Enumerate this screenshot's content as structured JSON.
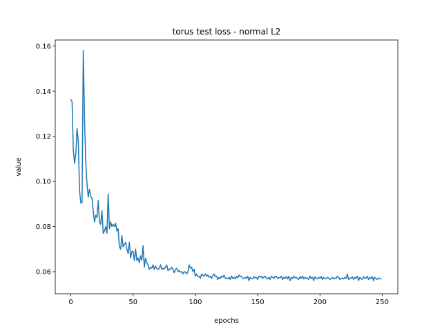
{
  "chart_data": {
    "type": "line",
    "title": "torus test loss - normal L2",
    "xlabel": "epochs",
    "ylabel": "value",
    "xlim": [
      -12.5,
      262.5
    ],
    "ylim": [
      0.0502,
      0.1627
    ],
    "xticks": [
      0,
      50,
      100,
      150,
      200,
      250
    ],
    "xtick_labels": [
      "0",
      "50",
      "100",
      "150",
      "200",
      "250"
    ],
    "yticks": [
      0.06,
      0.08,
      0.1,
      0.12,
      0.14,
      0.16
    ],
    "ytick_labels": [
      "0.06",
      "0.08",
      "0.10",
      "0.12",
      "0.14",
      "0.16"
    ],
    "grid": false,
    "line_color": "#1f77b4",
    "series": [
      {
        "x": [
          0,
          1,
          2,
          3,
          4,
          5,
          6,
          7,
          8,
          9,
          10,
          11,
          12,
          13,
          14,
          15,
          16,
          17,
          18,
          19,
          20,
          21,
          22,
          23,
          24,
          25,
          26,
          27,
          28,
          29,
          30,
          31,
          32,
          33,
          34,
          35,
          36,
          37,
          38,
          39,
          40,
          41,
          42,
          43,
          44,
          45,
          46,
          47,
          48,
          49,
          50,
          51,
          52,
          53,
          54,
          55,
          56,
          57,
          58,
          59,
          60,
          61,
          62,
          63,
          64,
          65,
          66,
          67,
          68,
          69,
          70,
          71,
          72,
          73,
          74,
          75,
          76,
          77,
          78,
          79,
          80,
          81,
          82,
          83,
          84,
          85,
          86,
          87,
          88,
          89,
          90,
          91,
          92,
          93,
          94,
          95,
          96,
          97,
          98,
          99,
          100,
          101,
          102,
          103,
          104,
          105,
          106,
          107,
          108,
          109,
          110,
          111,
          112,
          113,
          114,
          115,
          116,
          117,
          118,
          119,
          120,
          121,
          122,
          123,
          124,
          125,
          126,
          127,
          128,
          129,
          130,
          131,
          132,
          133,
          134,
          135,
          136,
          137,
          138,
          139,
          140,
          141,
          142,
          143,
          144,
          145,
          146,
          147,
          148,
          149,
          150,
          151,
          152,
          153,
          154,
          155,
          156,
          157,
          158,
          159,
          160,
          161,
          162,
          163,
          164,
          165,
          166,
          167,
          168,
          169,
          170,
          171,
          172,
          173,
          174,
          175,
          176,
          177,
          178,
          179,
          180,
          181,
          182,
          183,
          184,
          185,
          186,
          187,
          188,
          189,
          190,
          191,
          192,
          193,
          194,
          195,
          196,
          197,
          198,
          199,
          200,
          201,
          202,
          203,
          204,
          205,
          206,
          207,
          208,
          209,
          210,
          211,
          212,
          213,
          214,
          215,
          216,
          217,
          218,
          219,
          220,
          221,
          222,
          223,
          224,
          225,
          226,
          227,
          228,
          229,
          230,
          231,
          232,
          233,
          234,
          235,
          236,
          237,
          238,
          239,
          240,
          241,
          242,
          243,
          244,
          245,
          246,
          247,
          248,
          249
        ],
        "values": [
          0.1362,
          0.1355,
          0.114,
          0.108,
          0.112,
          0.1235,
          0.118,
          0.096,
          0.0905,
          0.0905,
          0.158,
          0.128,
          0.108,
          0.099,
          0.093,
          0.0965,
          0.0935,
          0.0925,
          0.087,
          0.082,
          0.085,
          0.084,
          0.0915,
          0.082,
          0.081,
          0.087,
          0.077,
          0.078,
          0.08,
          0.077,
          0.0945,
          0.079,
          0.082,
          0.08,
          0.081,
          0.08,
          0.0815,
          0.078,
          0.079,
          0.071,
          0.07,
          0.076,
          0.071,
          0.072,
          0.073,
          0.07,
          0.068,
          0.073,
          0.066,
          0.069,
          0.069,
          0.065,
          0.07,
          0.065,
          0.066,
          0.064,
          0.067,
          0.065,
          0.0715,
          0.062,
          0.066,
          0.064,
          0.063,
          0.061,
          0.062,
          0.0615,
          0.063,
          0.061,
          0.0625,
          0.0615,
          0.061,
          0.0615,
          0.063,
          0.061,
          0.0615,
          0.0612,
          0.062,
          0.063,
          0.0605,
          0.0612,
          0.061,
          0.062,
          0.061,
          0.0595,
          0.061,
          0.0615,
          0.06,
          0.0605,
          0.0598,
          0.06,
          0.059,
          0.06,
          0.0598,
          0.059,
          0.06,
          0.063,
          0.0615,
          0.062,
          0.06,
          0.061,
          0.058,
          0.059,
          0.0578,
          0.058,
          0.057,
          0.059,
          0.0583,
          0.058,
          0.059,
          0.058,
          0.0585,
          0.0575,
          0.058,
          0.057,
          0.0582,
          0.059,
          0.0578,
          0.058,
          0.0565,
          0.0575,
          0.057,
          0.058,
          0.0575,
          0.0585,
          0.057,
          0.0572,
          0.0568,
          0.0575,
          0.0565,
          0.058,
          0.057,
          0.0575,
          0.0568,
          0.058,
          0.0572,
          0.0585,
          0.0578,
          0.058,
          0.057,
          0.057,
          0.0575,
          0.057,
          0.058,
          0.056,
          0.0575,
          0.057,
          0.0568,
          0.0578,
          0.0572,
          0.0575,
          0.0565,
          0.058,
          0.0575,
          0.058,
          0.057,
          0.0576,
          0.058,
          0.057,
          0.0568,
          0.0575,
          0.0565,
          0.058,
          0.0575,
          0.057,
          0.058,
          0.0578,
          0.057,
          0.0575,
          0.0572,
          0.058,
          0.0565,
          0.0575,
          0.057,
          0.0578,
          0.0568,
          0.058,
          0.056,
          0.0575,
          0.057,
          0.058,
          0.0572,
          0.0575,
          0.057,
          0.0565,
          0.0578,
          0.057,
          0.058,
          0.0568,
          0.0575,
          0.057,
          0.0572,
          0.0565,
          0.058,
          0.057,
          0.0575,
          0.056,
          0.0578,
          0.057,
          0.0568,
          0.0575,
          0.057,
          0.0578,
          0.0565,
          0.0575,
          0.057,
          0.0568,
          0.0575,
          0.0572,
          0.0565,
          0.057,
          0.0575,
          0.0568,
          0.0572,
          0.057,
          0.058,
          0.0575,
          0.0565,
          0.057,
          0.0572,
          0.0568,
          0.0575,
          0.057,
          0.059,
          0.0565,
          0.0572,
          0.057,
          0.0578,
          0.0565,
          0.0575,
          0.057,
          0.058,
          0.056,
          0.0575,
          0.057,
          0.0565,
          0.0578,
          0.057,
          0.0572,
          0.058,
          0.0565,
          0.0575,
          0.057,
          0.0578,
          0.056,
          0.0575,
          0.057,
          0.0565,
          0.0572,
          0.057,
          0.0568
        ]
      }
    ]
  }
}
